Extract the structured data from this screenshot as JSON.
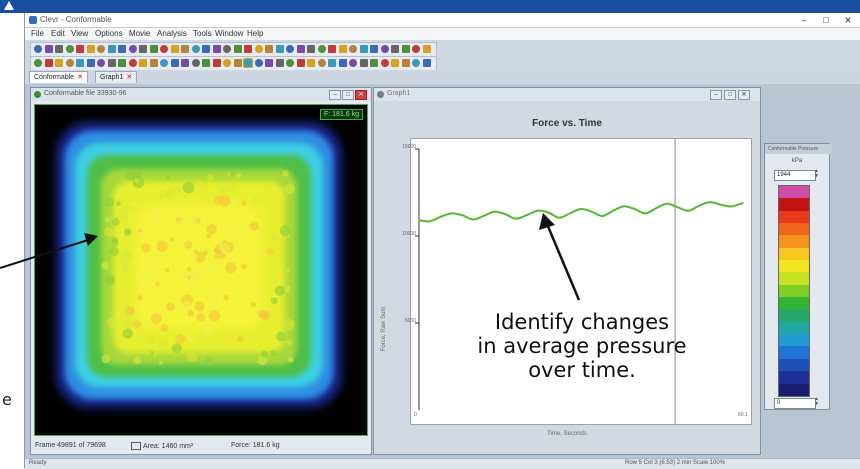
{
  "app": {
    "title": "Clevr - Conformable",
    "window_controls": [
      "–",
      "□",
      "✕"
    ]
  },
  "menu": [
    "File",
    "Edit",
    "View",
    "Options",
    "Movie",
    "Analysis",
    "Tools",
    "Window",
    "Help"
  ],
  "tabs": [
    {
      "label": "Conformable",
      "active": true
    },
    {
      "label": "Graph1",
      "active": false
    }
  ],
  "heatmap_window": {
    "title": "Conformable file 33930-96",
    "force_badge": "F: 181.6 kg",
    "status": {
      "frame": "Frame 49891 of 79698",
      "area": "Area: 1460 mm²",
      "force": "Force: 181.6 kg"
    }
  },
  "graph_window": {
    "title": "Graph1"
  },
  "legend_window": {
    "title": "Conformable Pressure",
    "unit": "kPa",
    "max_value": "1944",
    "min_value": "0",
    "colors": [
      "#d14ea8",
      "#c01414",
      "#e83a1a",
      "#f0641a",
      "#f5941c",
      "#f8c81e",
      "#f2e622",
      "#c8e222",
      "#7ecf26",
      "#34b433",
      "#26a86a",
      "#22a8a4",
      "#229ad2",
      "#1e74d6",
      "#1e4eb8",
      "#1c3096",
      "#1a1e6e"
    ]
  },
  "chart_data": {
    "type": "line",
    "title": "Force vs. Time",
    "xlabel": "Time, Seconds",
    "ylabel": "Force, Raw Sum",
    "yticks": [
      "15000",
      "10000",
      "5000"
    ],
    "xticks": [
      "0",
      "60.1"
    ],
    "xlim": [
      0,
      60.1
    ],
    "ylim": [
      0,
      15000
    ],
    "grid": false,
    "series": [
      {
        "color": "#55b82e",
        "x": [
          0,
          2,
          4,
          6,
          8,
          10,
          12,
          14,
          16,
          18,
          20,
          22,
          24,
          26,
          28,
          30,
          32,
          34,
          36,
          38,
          40,
          42,
          44,
          46,
          48,
          50,
          52,
          54,
          56,
          58,
          60.1
        ],
        "values": [
          10900,
          10850,
          11100,
          11300,
          11200,
          10950,
          11150,
          11400,
          11250,
          11000,
          11200,
          11450,
          11350,
          11050,
          11300,
          11550,
          11400,
          11150,
          11450,
          11700,
          11550,
          11300,
          11600,
          11850,
          11650,
          11450,
          11750,
          11950,
          11800,
          11700,
          11900
        ]
      }
    ],
    "cursor_x": 47.5
  },
  "annotation": {
    "lines": [
      "Identify changes",
      "in average pressure",
      "over time."
    ]
  },
  "callout_fragment": "e",
  "statusbar": {
    "left": "Ready",
    "right": "Row 5 Col 3 (6.53) 2 min   Scale 100%"
  }
}
